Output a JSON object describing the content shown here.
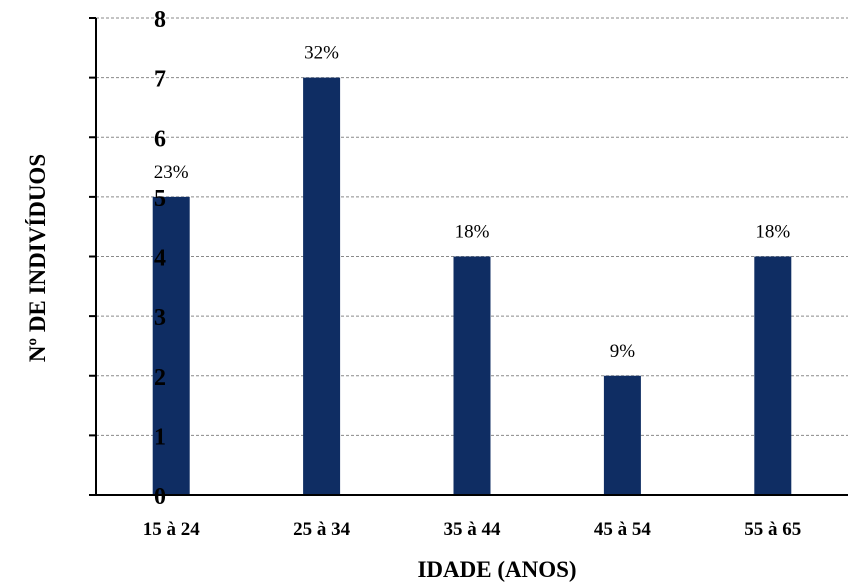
{
  "chart_data": {
    "type": "bar",
    "categories": [
      "15 à 24",
      "25 à 34",
      "35 à 44",
      "45 à 54",
      "55 à 65"
    ],
    "values": [
      5,
      7,
      4,
      2,
      4
    ],
    "data_labels": [
      "23%",
      "32%",
      "18%",
      "9%",
      "18%"
    ],
    "xlabel": "IDADE (ANOS)",
    "ylabel": "Nº DE INDIVÍDUOS",
    "ylim": [
      0,
      8
    ],
    "yticks": [
      "0",
      "1",
      "2",
      "3",
      "4",
      "5",
      "6",
      "7",
      "8"
    ],
    "grid": true,
    "bar_color": "#0f2d63"
  }
}
